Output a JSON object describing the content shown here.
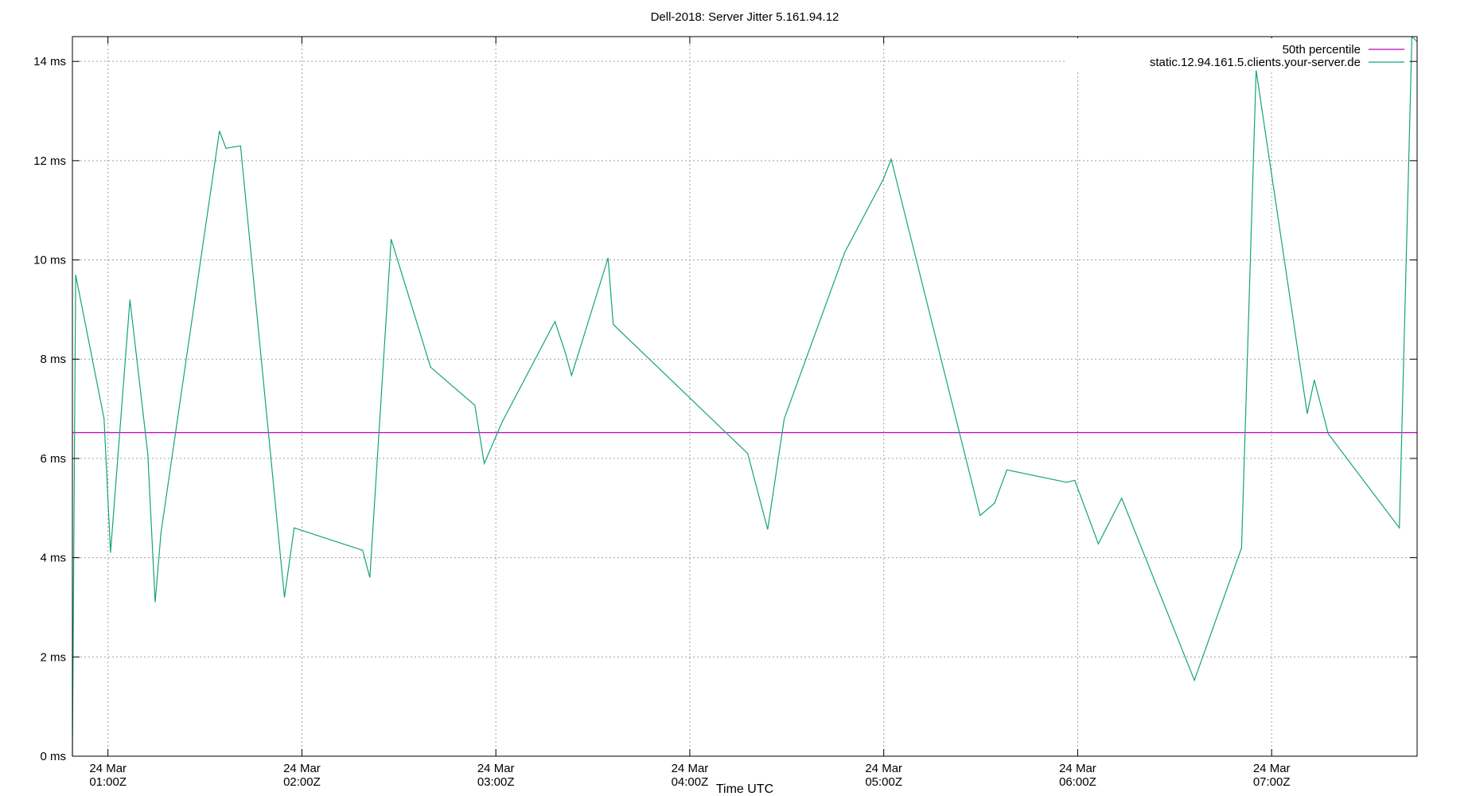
{
  "chart_data": {
    "type": "line",
    "title": "Dell-2018: Server Jitter 5.161.94.12",
    "xlabel": "Time UTC",
    "ylabel": "",
    "x_unit": "minutes after 00:00Z, 24 Mar",
    "xlim": [
      49.0,
      465.0
    ],
    "ylim": [
      0,
      14.5
    ],
    "y_ticks": [
      {
        "value": 0,
        "label": "0 ms"
      },
      {
        "value": 2,
        "label": "2 ms"
      },
      {
        "value": 4,
        "label": "4 ms"
      },
      {
        "value": 6,
        "label": "6 ms"
      },
      {
        "value": 8,
        "label": "8 ms"
      },
      {
        "value": 10,
        "label": "10 ms"
      },
      {
        "value": 12,
        "label": "12 ms"
      },
      {
        "value": 14,
        "label": "14 ms"
      }
    ],
    "x_ticks": [
      {
        "value": 60,
        "date": "24 Mar",
        "time": "01:00Z"
      },
      {
        "value": 120,
        "date": "24 Mar",
        "time": "02:00Z"
      },
      {
        "value": 180,
        "date": "24 Mar",
        "time": "03:00Z"
      },
      {
        "value": 240,
        "date": "24 Mar",
        "time": "04:00Z"
      },
      {
        "value": 300,
        "date": "24 Mar",
        "time": "05:00Z"
      },
      {
        "value": 360,
        "date": "24 Mar",
        "time": "06:00Z"
      },
      {
        "value": 420,
        "date": "24 Mar",
        "time": "07:00Z"
      }
    ],
    "grid": true,
    "legend_position": "top-right",
    "series": [
      {
        "name": "50th percentile",
        "color": "#c000c0",
        "x": [
          49.0,
          465.0
        ],
        "y": [
          6.52,
          6.52
        ]
      },
      {
        "name": "static.12.94.161.5.clients.your-server.de",
        "color": "#14a37f",
        "x": [
          49.0,
          50.0,
          58.8,
          60.8,
          66.8,
          72.3,
          74.6,
          76.4,
          94.5,
          96.5,
          101.0,
          114.6,
          117.6,
          138.8,
          141.0,
          147.6,
          159.8,
          173.5,
          176.4,
          182.0,
          198.3,
          201.6,
          203.4,
          214.7,
          216.3,
          257.9,
          264.1,
          269.2,
          288.0,
          299.9,
          302.3,
          329.8,
          334.3,
          338.1,
          356.6,
          359.1,
          366.4,
          373.6,
          396.1,
          410.7,
          415.2,
          431.0,
          433.2,
          437.5,
          459.5,
          463.4,
          465.0
        ],
        "y": [
          0.0,
          9.7,
          6.8,
          4.1,
          9.2,
          6.1,
          3.1,
          4.5,
          12.6,
          12.25,
          12.3,
          3.2,
          4.6,
          4.15,
          3.6,
          10.42,
          7.84,
          7.07,
          5.9,
          6.74,
          8.76,
          8.11,
          7.67,
          10.04,
          8.7,
          6.1,
          4.57,
          6.8,
          10.16,
          11.63,
          12.03,
          4.85,
          5.1,
          5.77,
          5.52,
          5.56,
          4.28,
          5.2,
          1.53,
          4.2,
          13.82,
          6.9,
          7.58,
          6.5,
          4.6,
          14.5,
          14.4
        ]
      }
    ]
  }
}
